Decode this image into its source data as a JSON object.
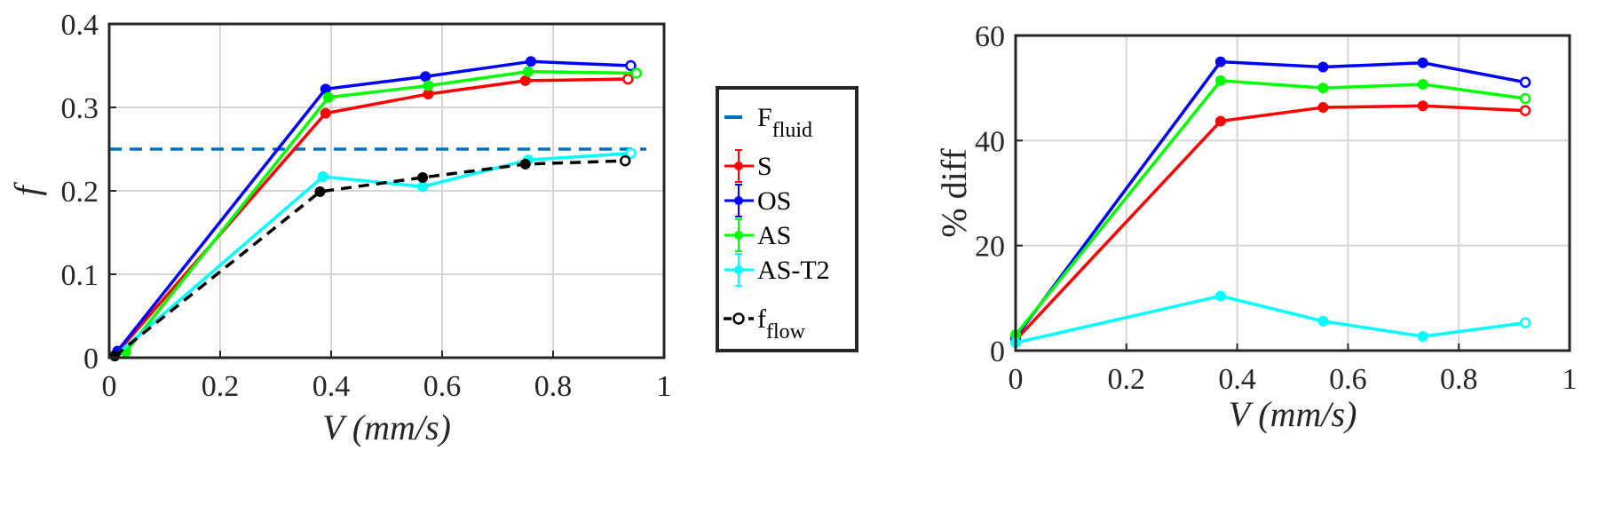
{
  "chart_data": [
    {
      "type": "line",
      "xlabel": "V (mm/s)",
      "ylabel": "f",
      "xlim": [
        0,
        1
      ],
      "ylim": [
        0,
        0.4
      ],
      "xticks": [
        0,
        0.2,
        0.4,
        0.6,
        0.8,
        1
      ],
      "xtick_labels": [
        "0",
        "0.2",
        "0.4",
        "0.6",
        "0.8",
        "1"
      ],
      "yticks": [
        0,
        0.1,
        0.2,
        0.3,
        0.4
      ],
      "ytick_labels": [
        "0",
        "0.1",
        "0.2",
        "0.3",
        "0.4"
      ],
      "grid": true,
      "reference_line": {
        "name": "F_fluid",
        "y": 0.25,
        "color": "#0072BD",
        "style": "dashed"
      },
      "series": [
        {
          "name": "S",
          "color": "#ff0000",
          "x": [
            0.01,
            0.39,
            0.575,
            0.75,
            0.935
          ],
          "y": [
            0.003,
            0.293,
            0.316,
            0.332,
            0.334
          ]
        },
        {
          "name": "OS",
          "color": "#0000ff",
          "x": [
            0.015,
            0.39,
            0.57,
            0.76,
            0.94
          ],
          "y": [
            0.008,
            0.322,
            0.337,
            0.355,
            0.35
          ]
        },
        {
          "name": "AS",
          "color": "#00ff00",
          "x": [
            0.03,
            0.395,
            0.575,
            0.755,
            0.95
          ],
          "y": [
            0.007,
            0.312,
            0.326,
            0.343,
            0.341
          ]
        },
        {
          "name": "AS-T2",
          "color": "#00ffff",
          "x": [
            0.01,
            0.385,
            0.565,
            0.755,
            0.94
          ],
          "y": [
            0.002,
            0.217,
            0.205,
            0.237,
            0.245
          ]
        },
        {
          "name": "f_flow",
          "color": "#000000",
          "style": "dashed",
          "x": [
            0.01,
            0.38,
            0.565,
            0.75,
            0.93
          ],
          "y": [
            0.002,
            0.199,
            0.216,
            0.232,
            0.236
          ]
        }
      ]
    },
    {
      "type": "line",
      "xlabel": "V (mm/s)",
      "ylabel": "% diff",
      "xlim": [
        0,
        1
      ],
      "ylim": [
        0,
        60
      ],
      "xticks": [
        0,
        0.2,
        0.4,
        0.6,
        0.8,
        1
      ],
      "xtick_labels": [
        "0",
        "0.2",
        "0.4",
        "0.6",
        "0.8",
        "1"
      ],
      "yticks": [
        0,
        20,
        40,
        60
      ],
      "ytick_labels": [
        "0",
        "20",
        "40",
        "60"
      ],
      "grid": true,
      "series": [
        {
          "name": "S",
          "color": "#ff0000",
          "x": [
            0,
            0.37,
            0.555,
            0.735,
            0.92
          ],
          "y": [
            2,
            43.7,
            46.3,
            46.6,
            45.7
          ]
        },
        {
          "name": "OS",
          "color": "#0000ff",
          "x": [
            0,
            0.37,
            0.555,
            0.735,
            0.92
          ],
          "y": [
            2.5,
            55,
            54,
            54.8,
            51.1
          ]
        },
        {
          "name": "AS",
          "color": "#00ff00",
          "x": [
            0,
            0.37,
            0.555,
            0.735,
            0.92
          ],
          "y": [
            3,
            51.4,
            50,
            50.7,
            48
          ]
        },
        {
          "name": "AS-T2",
          "color": "#00ffff",
          "x": [
            0,
            0.37,
            0.555,
            0.735,
            0.92
          ],
          "y": [
            1.5,
            10.4,
            5.6,
            2.7,
            5.3
          ]
        }
      ]
    }
  ],
  "legend": {
    "placement": "between plots",
    "entries": [
      {
        "main": "F",
        "sub": "fluid",
        "color": "#0072BD",
        "marker": "dash"
      },
      {
        "main": "S",
        "sub": "",
        "color": "#ff0000",
        "marker": "errorbar-dot"
      },
      {
        "main": "OS",
        "sub": "",
        "color": "#0000ff",
        "marker": "errorbar-dot"
      },
      {
        "main": "AS",
        "sub": "",
        "color": "#00ff00",
        "marker": "errorbar-dot"
      },
      {
        "main": "AS-T2",
        "sub": "",
        "color": "#00ffff",
        "marker": "errorbar-dot"
      },
      {
        "main": "f",
        "sub": "flow",
        "color": "#000000",
        "marker": "dashed-open-dot"
      }
    ]
  }
}
